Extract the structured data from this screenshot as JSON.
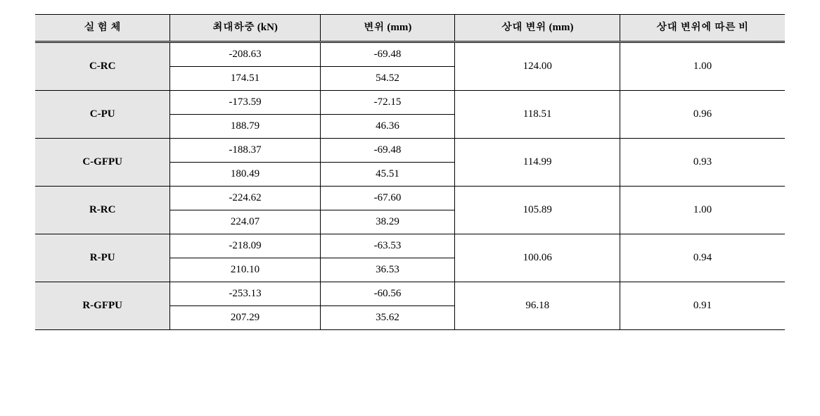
{
  "table": {
    "type": "table",
    "background_header": "#e6e6e6",
    "background_body": "#ffffff",
    "border_color": "#000000",
    "font_family": "Times New Roman / Batang",
    "header_fontsize": 15,
    "cell_fontsize": 15,
    "columns": {
      "c1": "실 험 체",
      "c2": "최대하중 (kN)",
      "c3": "변위 (mm)",
      "c4": "상대 변위 (mm)",
      "c5": "상대 변위에 따른 비"
    },
    "column_widths_pct": [
      18,
      20,
      18,
      22,
      22
    ],
    "groups": [
      {
        "label": "C-RC",
        "load_neg": "-208.63",
        "disp_neg": "-69.48",
        "load_pos": "174.51",
        "disp_pos": "54.52",
        "rel_disp": "124.00",
        "ratio": "1.00"
      },
      {
        "label": "C-PU",
        "load_neg": "-173.59",
        "disp_neg": "-72.15",
        "load_pos": "188.79",
        "disp_pos": "46.36",
        "rel_disp": "118.51",
        "ratio": "0.96"
      },
      {
        "label": "C-GFPU",
        "load_neg": "-188.37",
        "disp_neg": "-69.48",
        "load_pos": "180.49",
        "disp_pos": "45.51",
        "rel_disp": "114.99",
        "ratio": "0.93"
      },
      {
        "label": "R-RC",
        "load_neg": "-224.62",
        "disp_neg": "-67.60",
        "load_pos": "224.07",
        "disp_pos": "38.29",
        "rel_disp": "105.89",
        "ratio": "1.00"
      },
      {
        "label": "R-PU",
        "load_neg": "-218.09",
        "disp_neg": "-63.53",
        "load_pos": "210.10",
        "disp_pos": "36.53",
        "rel_disp": "100.06",
        "ratio": "0.94"
      },
      {
        "label": "R-GFPU",
        "load_neg": "-253.13",
        "disp_neg": "-60.56",
        "load_pos": "207.29",
        "disp_pos": "35.62",
        "rel_disp": "96.18",
        "ratio": "0.91"
      }
    ]
  }
}
